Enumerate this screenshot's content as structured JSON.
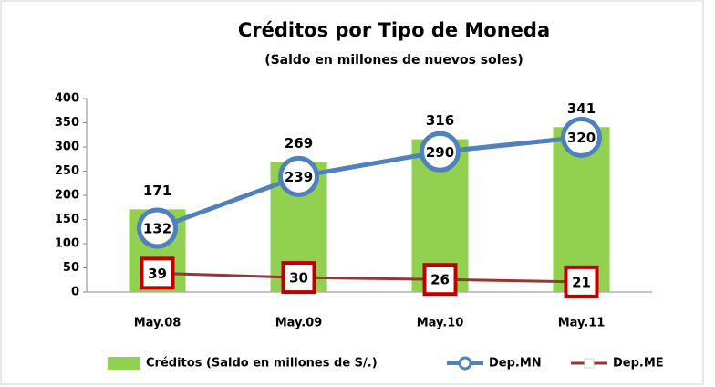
{
  "chart_data": {
    "type": "bar",
    "title": "Créditos por Tipo de Moneda",
    "subtitle": "(Saldo en millones de nuevos soles)",
    "categories": [
      "May.08",
      "May.09",
      "May.10",
      "May.11"
    ],
    "ylim": [
      0,
      400
    ],
    "yticks": [
      0,
      50,
      100,
      150,
      200,
      250,
      300,
      350,
      400
    ],
    "grid": false,
    "legend": "bottom",
    "series": [
      {
        "name": "Créditos (Saldo en millones de S/.)",
        "type": "bar",
        "color": "#92d050",
        "values": [
          171,
          269,
          316,
          341
        ]
      },
      {
        "name": "Dep.MN",
        "type": "line",
        "marker": "circle",
        "color": "#4f81bd",
        "values": [
          132,
          239,
          290,
          320
        ]
      },
      {
        "name": "Dep.ME",
        "type": "line",
        "marker": "square",
        "color": "#c00000",
        "values": [
          39,
          30,
          26,
          21
        ]
      }
    ]
  }
}
